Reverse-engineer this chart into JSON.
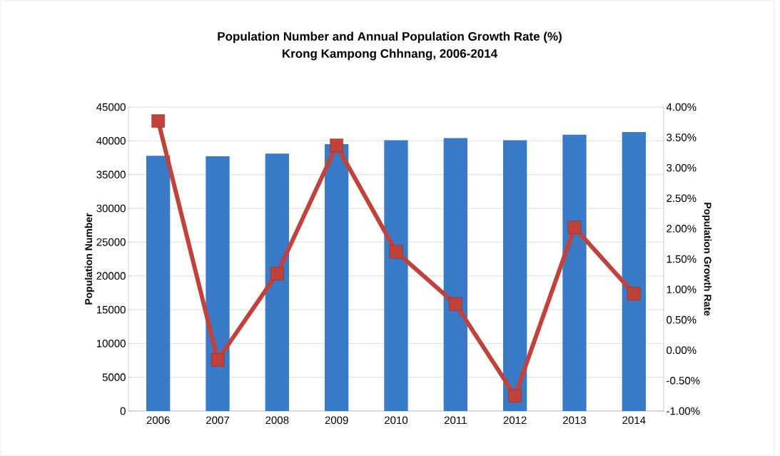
{
  "chart_data": {
    "type": "bar",
    "title": "Population Number and Annual Population Growth Rate (%)",
    "subtitle": "Krong Kampong Chhnang, 2006-2014",
    "ylabel": "Population Number",
    "y2label": "Population Growth Rate",
    "categories": [
      "2006",
      "2007",
      "2008",
      "2009",
      "2010",
      "2011",
      "2012",
      "2013",
      "2014"
    ],
    "series": [
      {
        "color": "#3a7bc8",
        "values": [
          37800,
          37700,
          38100,
          39500,
          40100,
          40400,
          40100,
          40900,
          41300
        ]
      },
      {
        "type": "line",
        "axis": "y2",
        "color": "#c3413b",
        "marker": "square",
        "values": [
          3.77,
          -0.16,
          1.26,
          3.37,
          1.62,
          0.76,
          -0.75,
          2.02,
          0.93
        ]
      }
    ],
    "ylim": [
      0,
      45000
    ],
    "yticks": [
      0,
      5000,
      10000,
      15000,
      20000,
      25000,
      30000,
      35000,
      40000,
      45000
    ],
    "y2lim": [
      -1,
      4
    ],
    "y2ticks": [
      {
        "value": -1,
        "label": "-1.00%"
      },
      {
        "value": -0.5,
        "label": "-0.50%"
      },
      {
        "value": 0,
        "label": "0.00%"
      },
      {
        "value": 0.5,
        "label": "0.50%"
      },
      {
        "value": 1,
        "label": "1.00%"
      },
      {
        "value": 1.5,
        "label": "1.50%"
      },
      {
        "value": 2,
        "label": "2.00%"
      },
      {
        "value": 2.5,
        "label": "2.50%"
      },
      {
        "value": 3,
        "label": "3.00%"
      },
      {
        "value": 3.5,
        "label": "3.50%"
      },
      {
        "value": 4,
        "label": "4.00%"
      }
    ],
    "grid": "y",
    "legend": false
  }
}
